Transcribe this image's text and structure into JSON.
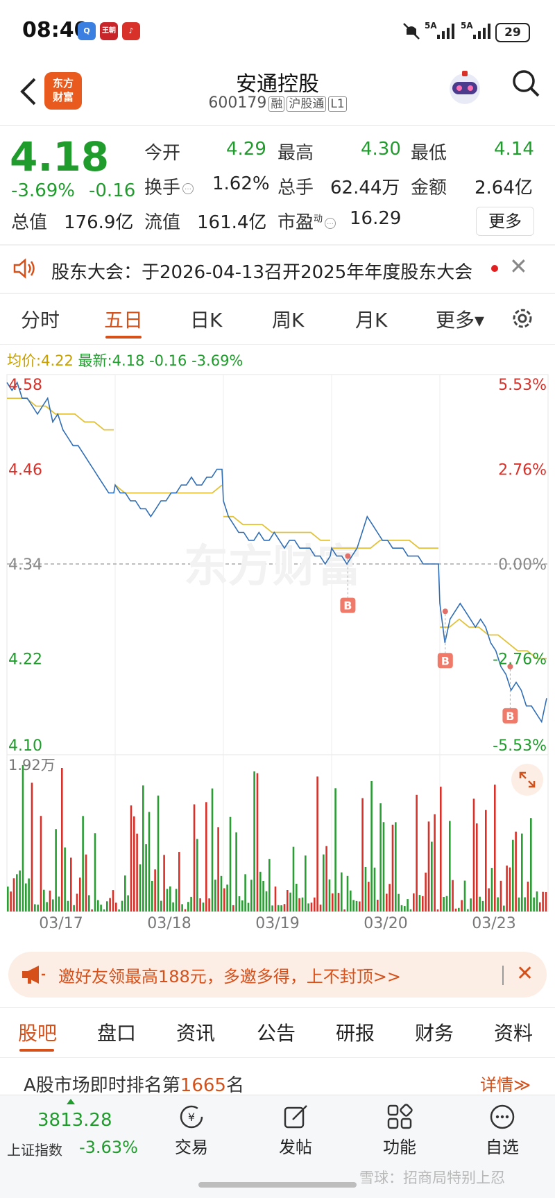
{
  "status_bar": {
    "time": "08:40",
    "apps": [
      "Q",
      "王朝",
      "♪"
    ],
    "signal1": "5A",
    "signal2": "5A",
    "battery": "29"
  },
  "header": {
    "brand_logo": "东方\n财富",
    "stock_name": "安通控股",
    "stock_code": "600179",
    "tags": [
      "融",
      "沪股通",
      "L1"
    ]
  },
  "quote": {
    "price": "4.18",
    "change_pct": "-3.69%",
    "change_amt": "-0.16",
    "fields": [
      {
        "label": "今开",
        "value": "4.29",
        "color": "green"
      },
      {
        "label": "最高",
        "value": "4.30",
        "color": "green"
      },
      {
        "label": "最低",
        "value": "4.14",
        "color": "green"
      },
      {
        "label": "换手",
        "value": "1.62%",
        "color": "dark"
      },
      {
        "label": "总手",
        "value": "62.44万",
        "color": "dark"
      },
      {
        "label": "金额",
        "value": "2.64亿",
        "color": "dark"
      },
      {
        "label": "总值",
        "value": "176.9亿",
        "color": "dark"
      },
      {
        "label": "流值",
        "value": "161.4亿",
        "color": "dark"
      },
      {
        "label": "市盈",
        "value": "16.29",
        "color": "dark"
      }
    ],
    "pe_superscript": "动",
    "more_label": "更多"
  },
  "notice": {
    "text": "股东大会：于2026-04-13召开2025年年度股东大会",
    "close": "✕"
  },
  "chart_tabs": [
    "分时",
    "五日",
    "日K",
    "周K",
    "月K",
    "更多▾"
  ],
  "avg_line": {
    "avg_label": "均价:",
    "avg_value": "4.22",
    "latest_label": "最新:",
    "latest_value": "4.18",
    "latest_change": "-0.16",
    "latest_pct": "-3.69%"
  },
  "chart_data": {
    "type": "line",
    "y_labels_left": [
      "4.58",
      "4.46",
      "4.34",
      "4.22",
      "4.10"
    ],
    "y_labels_right": [
      "5.53%",
      "2.76%",
      "0.00%",
      "-2.76%",
      "-5.53%"
    ],
    "ylim": [
      4.1,
      4.58
    ],
    "prev_close": 4.34,
    "days": [
      "03/17",
      "03/18",
      "03/19",
      "03/20",
      "03/23"
    ],
    "price_series": [
      [
        4.57,
        4.56,
        4.57,
        4.55,
        4.55,
        4.54,
        4.53,
        4.54,
        4.55,
        4.52,
        4.53,
        4.51,
        4.5,
        4.49,
        4.49,
        4.48,
        4.47,
        4.46,
        4.45,
        4.44,
        4.43,
        4.43
      ],
      [
        4.44,
        4.43,
        4.43,
        4.42,
        4.42,
        4.41,
        4.41,
        4.4,
        4.41,
        4.42,
        4.42,
        4.43,
        4.43,
        4.44,
        4.44,
        4.45,
        4.44,
        4.44,
        4.45,
        4.45,
        4.46,
        4.46
      ],
      [
        4.42,
        4.4,
        4.39,
        4.38,
        4.38,
        4.37,
        4.37,
        4.38,
        4.37,
        4.37,
        4.38,
        4.37,
        4.36,
        4.37,
        4.37,
        4.36,
        4.36,
        4.36,
        4.35,
        4.35,
        4.34,
        4.35
      ],
      [
        4.36,
        4.35,
        4.35,
        4.34,
        4.35,
        4.36,
        4.38,
        4.4,
        4.39,
        4.38,
        4.37,
        4.37,
        4.36,
        4.36,
        4.36,
        4.35,
        4.35,
        4.35,
        4.34,
        4.34,
        4.34,
        4.34
      ],
      [
        4.29,
        4.24,
        4.27,
        4.28,
        4.29,
        4.28,
        4.27,
        4.26,
        4.27,
        4.26,
        4.24,
        4.23,
        4.21,
        4.2,
        4.18,
        4.19,
        4.18,
        4.16,
        4.16,
        4.15,
        4.14,
        4.17
      ]
    ],
    "avg_series": [
      [
        4.55,
        4.55,
        4.55,
        4.54,
        4.54,
        4.53,
        4.53,
        4.53,
        4.52,
        4.52,
        4.51,
        4.51
      ],
      [
        4.44,
        4.43,
        4.43,
        4.43,
        4.43,
        4.43,
        4.43,
        4.43,
        4.43,
        4.43,
        4.43,
        4.44
      ],
      [
        4.4,
        4.4,
        4.39,
        4.39,
        4.39,
        4.38,
        4.38,
        4.38,
        4.38,
        4.38,
        4.37,
        4.37
      ],
      [
        4.36,
        4.36,
        4.36,
        4.36,
        4.36,
        4.37,
        4.37,
        4.37,
        4.37,
        4.36,
        4.36,
        4.36
      ],
      [
        4.26,
        4.26,
        4.27,
        4.26,
        4.26,
        4.25,
        4.25,
        4.24,
        4.23,
        4.23,
        4.22,
        4.22
      ]
    ],
    "buy_markers": [
      {
        "day": 3,
        "t": 0.15,
        "price": 4.35,
        "label": "B"
      },
      {
        "day": 4,
        "t": 0.05,
        "price": 4.28,
        "label": "B"
      },
      {
        "day": 4,
        "t": 0.65,
        "price": 4.21,
        "label": "B"
      }
    ],
    "volume_label": "1.92万",
    "volume_max": 1.92,
    "volume_bars": 180
  },
  "invite": {
    "text": "邀好友领最高188元，多邀多得，上不封顶>>",
    "close": "✕"
  },
  "bottom_tabs": [
    "股吧",
    "盘口",
    "资讯",
    "公告",
    "研报",
    "财务",
    "资料"
  ],
  "rank": {
    "prefix": "A股市场即时排名第",
    "number": "1665",
    "suffix": "名",
    "detail": "详情≫"
  },
  "toolbar": {
    "index_value": "3813.28",
    "index_name": "上证指数",
    "index_pct": "-3.63%",
    "items": [
      "交易",
      "发帖",
      "功能",
      "自选"
    ]
  },
  "watermark": "雪球：招商局特别上忍"
}
